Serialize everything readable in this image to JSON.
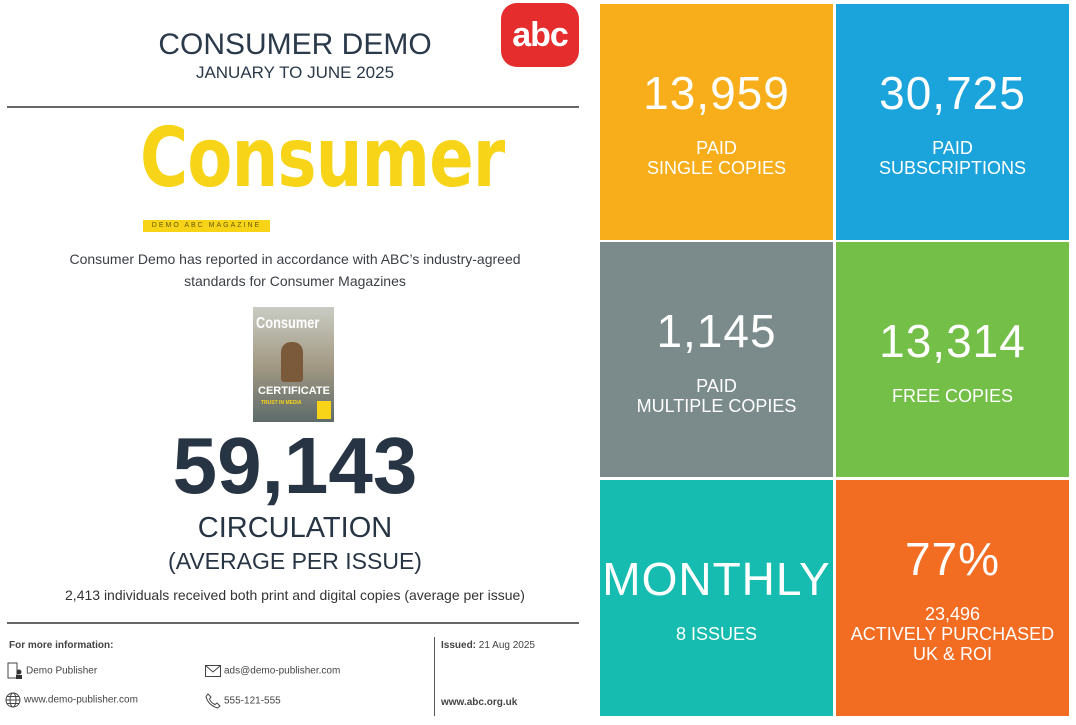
{
  "header": {
    "title": "CONSUMER DEMO",
    "period": "JANUARY TO JUNE 2025",
    "abc_logo": "abc"
  },
  "magazine": {
    "logo": "Consumer",
    "tagline": "DEMO ABC MAGAZINE",
    "cover": {
      "title": "Consumer",
      "headline": "CERTIFICATE",
      "subline": "TRUST IN MEDIA"
    }
  },
  "description": "Consumer Demo has reported in accordance with ABC’s industry-agreed standards for Consumer Magazines",
  "circulation": {
    "value": "59,143",
    "label": "CIRCULATION",
    "sublabel": "(AVERAGE PER ISSUE)",
    "note": "2,413 individuals received both print and digital copies (average per issue)"
  },
  "footer": {
    "info_heading": "For more information:",
    "publisher": "Demo Publisher",
    "email": "ads@demo-publisher.com",
    "website": "www.demo-publisher.com",
    "phone": "555-121-555",
    "issued_label": "Issued:",
    "issued_date": "21 Aug 2025",
    "abc_url": "www.abc.org.uk"
  },
  "tiles": [
    {
      "value": "13,959",
      "line1": "PAID",
      "line2": "SINGLE COPIES",
      "color": "#F8AE1B"
    },
    {
      "value": "30,725",
      "line1": "PAID",
      "line2": "SUBSCRIPTIONS",
      "color": "#1BA3DC"
    },
    {
      "value": "1,145",
      "line1": "PAID",
      "line2": "MULTIPLE COPIES",
      "color": "#7B8B8B"
    },
    {
      "value": "13,314",
      "line1": "FREE COPIES",
      "line2": "",
      "color": "#73BF48"
    },
    {
      "value": "MONTHLY",
      "line1": "8 ISSUES",
      "line2": "",
      "color": "#15BCAF"
    },
    {
      "value": "77%",
      "line1": "23,496",
      "line2": "ACTIVELY PURCHASED",
      "line3": "UK & ROI",
      "color": "#F26C22"
    }
  ]
}
